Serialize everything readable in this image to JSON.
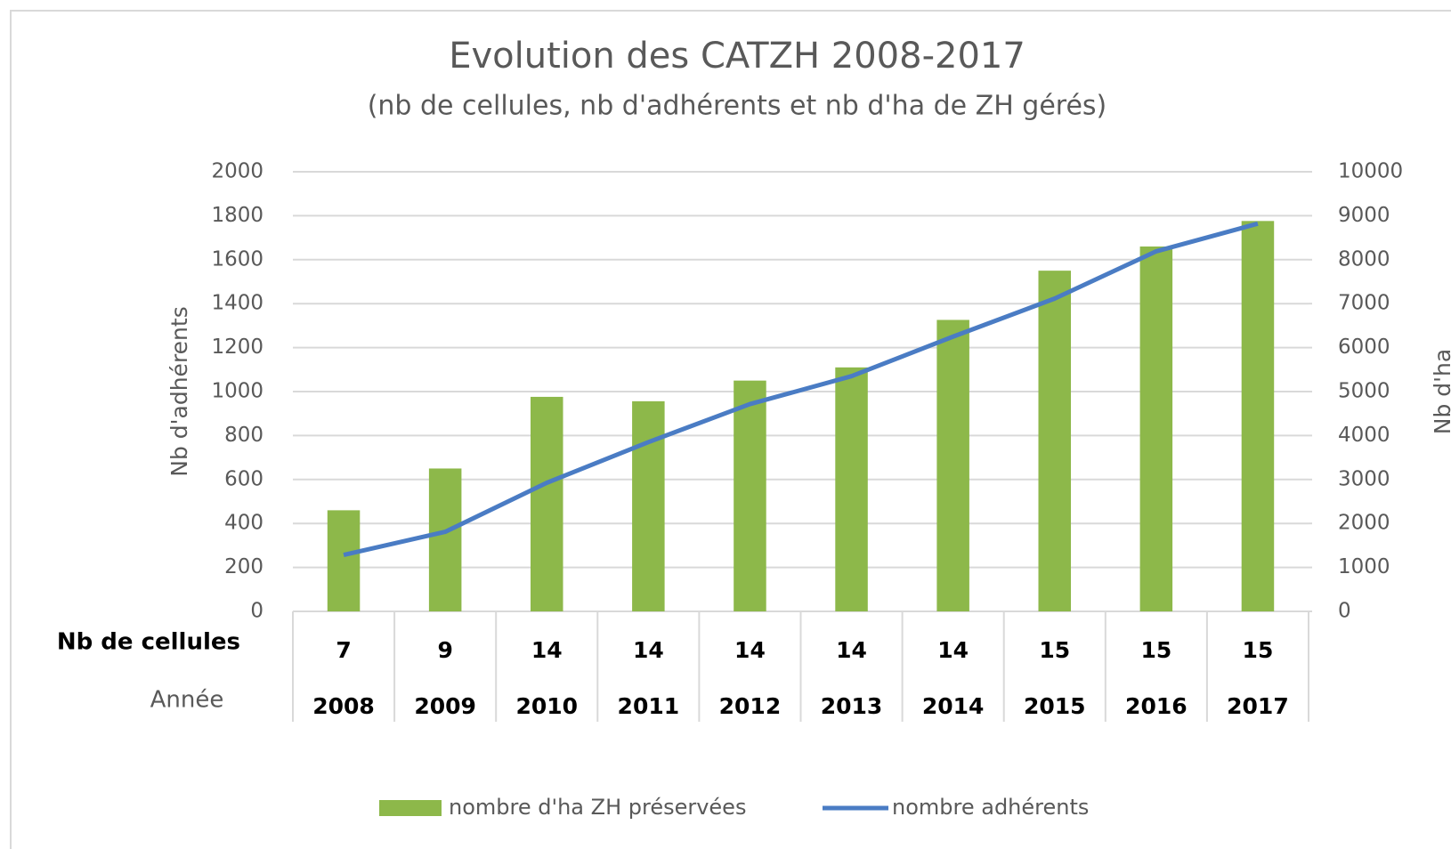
{
  "chart_data": {
    "type": "bar+line",
    "title": "Evolution des CATZH 2008-2017",
    "subtitle": "(nb de cellules, nb d'adhérents et nb d'ha de ZH gérés)",
    "y_label": "Nb d'adhérents",
    "y2_label": "Nb d'ha",
    "categories_label": "Année",
    "categories": [
      "2008",
      "2009",
      "2010",
      "2011",
      "2012",
      "2013",
      "2014",
      "2015",
      "2016",
      "2017"
    ],
    "cells_label": "Nb de cellules",
    "cells": [
      7,
      9,
      14,
      14,
      14,
      14,
      14,
      15,
      15,
      15
    ],
    "series": [
      {
        "name": "nombre d'ha ZH préservées",
        "type": "bar",
        "axis": "y2",
        "color": "#8db84a",
        "values": [
          2300,
          3250,
          4880,
          4780,
          5250,
          5550,
          6630,
          7750,
          8300,
          8880
        ]
      },
      {
        "name": "nombre adhérents",
        "type": "line",
        "color": "#4a7cc4",
        "values": [
          257,
          362,
          585,
          770,
          943,
          1070,
          1250,
          1423,
          1638,
          1764
        ]
      }
    ],
    "ylim": [
      0,
      2000
    ],
    "yticks": [
      0,
      200,
      400,
      600,
      800,
      1000,
      1200,
      1400,
      1600,
      1800,
      2000
    ],
    "y2lim": [
      0,
      10000
    ],
    "y2ticks": [
      0,
      1000,
      2000,
      3000,
      4000,
      5000,
      6000,
      7000,
      8000,
      9000,
      10000
    ],
    "grid": true,
    "legend": "bottom"
  }
}
